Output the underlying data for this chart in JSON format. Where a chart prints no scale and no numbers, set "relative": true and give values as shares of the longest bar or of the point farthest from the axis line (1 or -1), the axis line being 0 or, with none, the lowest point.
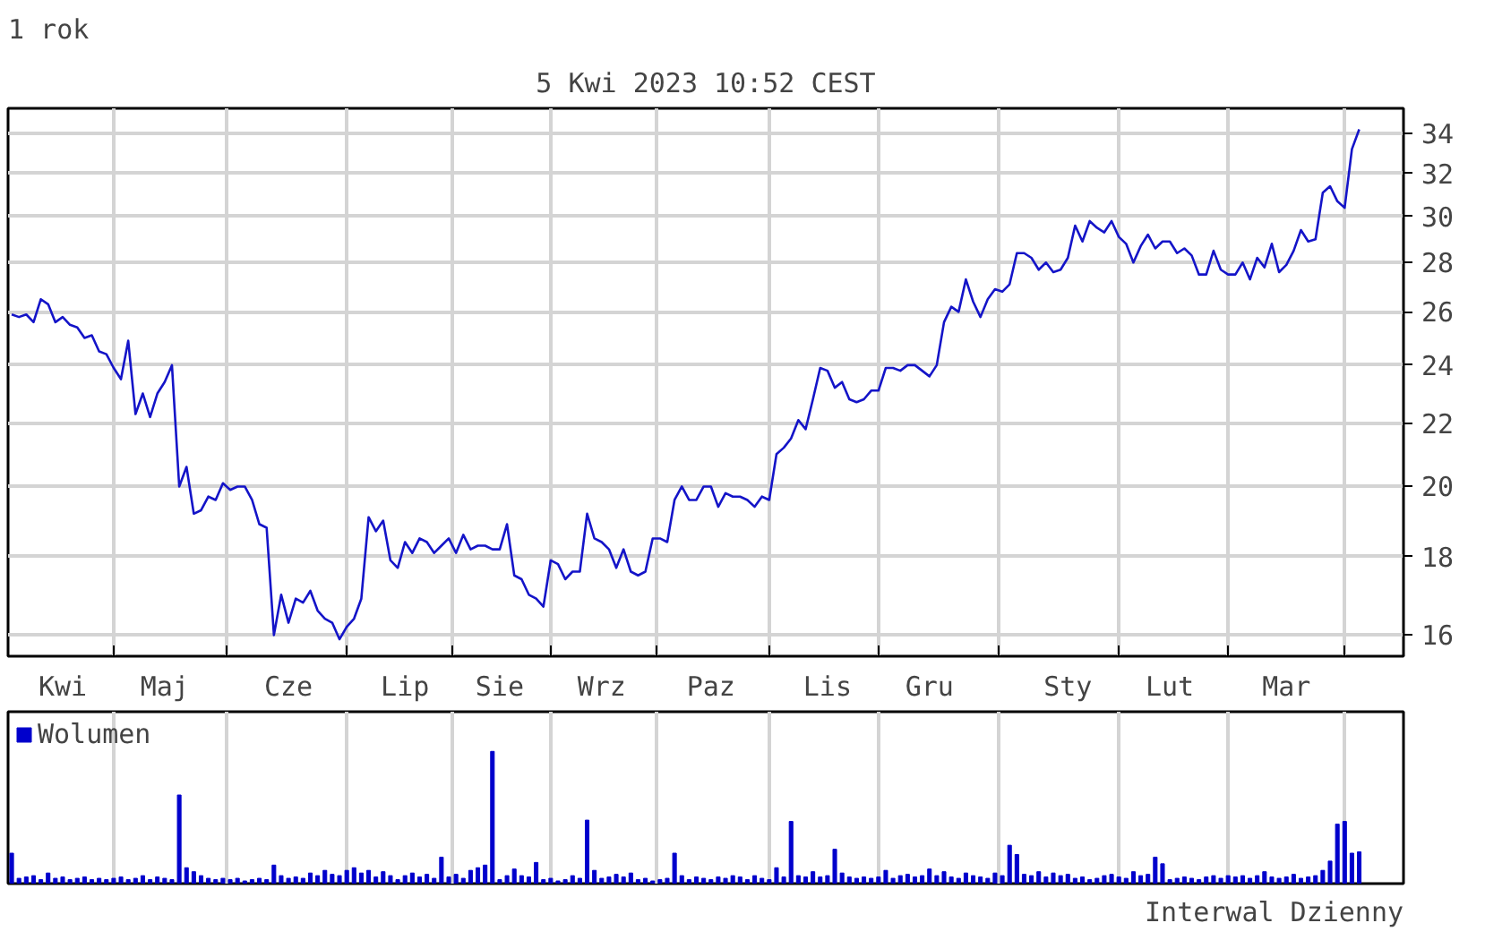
{
  "chart_data": [
    {
      "type": "line",
      "title": "1 rok",
      "subtitle": "5 Kwi 2023 10:52 CEST",
      "log": true,
      "grid": true,
      "legend": false,
      "ylim": [
        15.5,
        35.3
      ],
      "yticks": [
        16,
        18,
        20,
        22,
        24,
        26,
        28,
        30,
        32,
        34
      ],
      "categories": [
        null,
        null,
        null,
        null,
        null,
        null,
        null,
        "Kwi",
        null,
        null,
        null,
        null,
        null,
        null,
        null,
        null,
        null,
        null,
        null,
        null,
        null,
        "Maj",
        null,
        null,
        null,
        null,
        null,
        null,
        null,
        null,
        null,
        null,
        null,
        null,
        null,
        null,
        null,
        null,
        "Cze",
        null,
        null,
        null,
        null,
        null,
        null,
        null,
        null,
        null,
        null,
        null,
        null,
        null,
        null,
        null,
        "Lip",
        null,
        null,
        null,
        null,
        null,
        null,
        null,
        null,
        null,
        null,
        null,
        null,
        "Sie",
        null,
        null,
        null,
        null,
        null,
        null,
        null,
        null,
        null,
        null,
        null,
        null,
        null,
        "Wrz",
        null,
        null,
        null,
        null,
        null,
        null,
        null,
        null,
        null,
        null,
        null,
        null,
        null,
        null,
        "Paz",
        null,
        null,
        null,
        null,
        null,
        null,
        null,
        null,
        null,
        null,
        null,
        null,
        null,
        null,
        null,
        "Lis",
        null,
        null,
        null,
        null,
        null,
        null,
        null,
        null,
        null,
        null,
        null,
        null,
        null,
        "Gru",
        null,
        null,
        null,
        null,
        null,
        null,
        null,
        null,
        null,
        null,
        null,
        null,
        null,
        null,
        null,
        null,
        null,
        null,
        "Sty",
        null,
        null,
        null,
        null,
        null,
        null,
        null,
        null,
        null,
        null,
        null,
        null,
        null,
        "Lut",
        null,
        null,
        null,
        null,
        null,
        null,
        null,
        null,
        null,
        null,
        null,
        null,
        null,
        null,
        null,
        "Mar",
        null,
        null,
        null,
        null,
        null,
        null,
        null,
        null,
        null,
        null
      ],
      "series": [
        {
          "color": "#1414c8",
          "values": [
            25.9,
            25.8,
            25.9,
            25.6,
            26.5,
            26.3,
            25.6,
            25.8,
            25.5,
            25.4,
            25.0,
            25.1,
            24.5,
            24.4,
            23.9,
            23.5,
            24.9,
            22.3,
            23.0,
            22.2,
            23.0,
            23.4,
            24.0,
            20.0,
            20.6,
            19.2,
            19.3,
            19.7,
            19.6,
            20.1,
            19.9,
            20.0,
            20.0,
            19.6,
            18.9,
            18.8,
            16.0,
            17.0,
            16.3,
            16.9,
            16.8,
            17.1,
            16.6,
            16.4,
            16.3,
            15.9,
            16.2,
            16.4,
            16.9,
            19.1,
            18.7,
            19.0,
            17.9,
            17.7,
            18.4,
            18.1,
            18.5,
            18.4,
            18.1,
            18.3,
            18.5,
            18.1,
            18.6,
            18.2,
            18.3,
            18.3,
            18.2,
            18.2,
            18.9,
            17.5,
            17.4,
            17.0,
            16.9,
            16.7,
            17.9,
            17.8,
            17.4,
            17.6,
            17.6,
            19.2,
            18.5,
            18.4,
            18.2,
            17.7,
            18.2,
            17.6,
            17.5,
            17.6,
            18.5,
            18.5,
            18.4,
            19.6,
            20.0,
            19.6,
            19.6,
            20.0,
            20.0,
            19.4,
            19.8,
            19.7,
            19.7,
            19.6,
            19.4,
            19.7,
            19.6,
            21.0,
            21.2,
            21.5,
            22.1,
            21.8,
            22.8,
            23.9,
            23.8,
            23.2,
            23.4,
            22.8,
            22.7,
            22.8,
            23.1,
            23.1,
            23.9,
            23.9,
            23.8,
            24.0,
            24.0,
            23.8,
            23.6,
            24.0,
            25.6,
            26.2,
            26.0,
            27.3,
            26.4,
            25.8,
            26.5,
            26.9,
            26.8,
            27.1,
            28.4,
            28.4,
            28.2,
            27.7,
            28.0,
            27.6,
            27.7,
            28.2,
            29.6,
            28.9,
            29.8,
            29.5,
            29.3,
            29.8,
            29.1,
            28.8,
            28.0,
            28.7,
            29.2,
            28.6,
            28.9,
            28.9,
            28.4,
            28.6,
            28.3,
            27.5,
            27.5,
            28.5,
            27.7,
            27.5,
            27.5,
            28.0,
            27.3,
            28.2,
            27.8,
            28.8,
            27.6,
            27.9,
            28.5,
            29.4,
            28.9,
            29.0,
            31.1,
            31.4,
            30.7,
            30.4,
            33.2,
            34.2
          ]
        }
      ]
    },
    {
      "type": "bar",
      "relative": true,
      "grid": "x",
      "legend": "top left",
      "tick_labels": false,
      "annotations": [
        "Interwal Dzienny"
      ],
      "categories": [
        null,
        null,
        null,
        null,
        null,
        null,
        null,
        null,
        null,
        null,
        null,
        null,
        null,
        null,
        null,
        null,
        null,
        null,
        null,
        null,
        null,
        null,
        null,
        null,
        null,
        null,
        null,
        null,
        null,
        null,
        null,
        null,
        null,
        null,
        null,
        null,
        null,
        null,
        null,
        null,
        null,
        null,
        null,
        null,
        null,
        null,
        null,
        null,
        null,
        null,
        null,
        null,
        null,
        null,
        null,
        null,
        null,
        null,
        null,
        null,
        null,
        null,
        null,
        null,
        null,
        null,
        null,
        null,
        null,
        null,
        null,
        null,
        null,
        null,
        null,
        null,
        null,
        null,
        null,
        null,
        null,
        null,
        null,
        null,
        null,
        null,
        null,
        null,
        null,
        null,
        null,
        null,
        null,
        null,
        null,
        null,
        null,
        null,
        null,
        null,
        null,
        null,
        null,
        null,
        null,
        null,
        null,
        null,
        null,
        null,
        null,
        null,
        null,
        null,
        null,
        null,
        null,
        null,
        null,
        null,
        null,
        null,
        null,
        null,
        null,
        null,
        null,
        null,
        null,
        null,
        null,
        null,
        null,
        null,
        null,
        null,
        null,
        null,
        null,
        null,
        null,
        null,
        null,
        null,
        null,
        null,
        null,
        null,
        null,
        null,
        null,
        null,
        null,
        null,
        null,
        null,
        null,
        null,
        null,
        null,
        null,
        null,
        null,
        null,
        null,
        null,
        null,
        null,
        null,
        null,
        null,
        null,
        null,
        null,
        null,
        null,
        null,
        null,
        null,
        null,
        null,
        null,
        null,
        null,
        null,
        null
      ],
      "series": [
        {
          "name": "Wolumen",
          "color": "#0000cc",
          "values": [
            0.23,
            0.04,
            0.05,
            0.06,
            0.03,
            0.08,
            0.04,
            0.05,
            0.03,
            0.04,
            0.05,
            0.03,
            0.04,
            0.03,
            0.04,
            0.05,
            0.03,
            0.04,
            0.06,
            0.03,
            0.05,
            0.04,
            0.03,
            0.67,
            0.12,
            0.09,
            0.06,
            0.04,
            0.03,
            0.04,
            0.03,
            0.04,
            0.02,
            0.03,
            0.04,
            0.03,
            0.14,
            0.06,
            0.04,
            0.05,
            0.04,
            0.08,
            0.06,
            0.1,
            0.07,
            0.06,
            0.1,
            0.12,
            0.08,
            0.1,
            0.05,
            0.09,
            0.06,
            0.03,
            0.06,
            0.08,
            0.05,
            0.07,
            0.04,
            0.2,
            0.05,
            0.07,
            0.04,
            0.1,
            0.12,
            0.14,
            1.0,
            0.03,
            0.06,
            0.11,
            0.06,
            0.05,
            0.16,
            0.03,
            0.04,
            0.02,
            0.03,
            0.06,
            0.04,
            0.48,
            0.1,
            0.04,
            0.05,
            0.07,
            0.05,
            0.08,
            0.03,
            0.04,
            0.02,
            0.03,
            0.04,
            0.23,
            0.06,
            0.03,
            0.05,
            0.04,
            0.03,
            0.05,
            0.04,
            0.06,
            0.05,
            0.03,
            0.06,
            0.04,
            0.03,
            0.12,
            0.05,
            0.47,
            0.06,
            0.05,
            0.09,
            0.05,
            0.06,
            0.26,
            0.08,
            0.05,
            0.04,
            0.05,
            0.04,
            0.05,
            0.1,
            0.04,
            0.06,
            0.07,
            0.05,
            0.06,
            0.11,
            0.06,
            0.09,
            0.05,
            0.04,
            0.08,
            0.06,
            0.05,
            0.04,
            0.08,
            0.06,
            0.29,
            0.22,
            0.07,
            0.06,
            0.09,
            0.05,
            0.08,
            0.06,
            0.07,
            0.04,
            0.05,
            0.03,
            0.04,
            0.06,
            0.07,
            0.05,
            0.04,
            0.09,
            0.06,
            0.07,
            0.2,
            0.15,
            0.03,
            0.04,
            0.05,
            0.04,
            0.03,
            0.05,
            0.06,
            0.04,
            0.06,
            0.05,
            0.06,
            0.04,
            0.06,
            0.09,
            0.05,
            0.04,
            0.05,
            0.07,
            0.04,
            0.05,
            0.06,
            0.1,
            0.17,
            0.45,
            0.47,
            0.23,
            0.24
          ]
        }
      ]
    }
  ]
}
